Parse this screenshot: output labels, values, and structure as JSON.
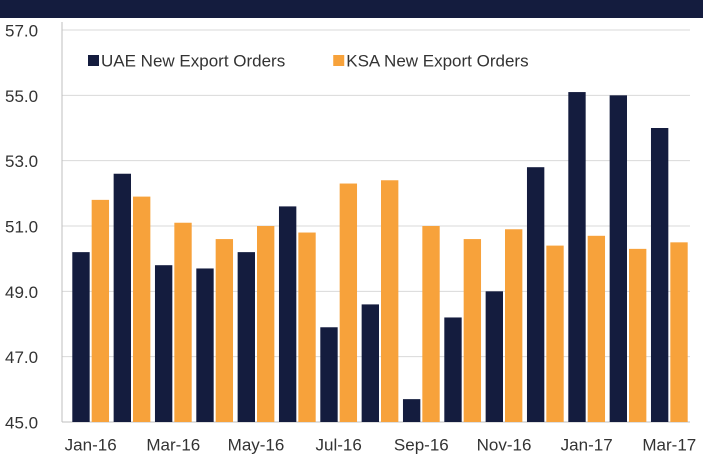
{
  "chart_data": {
    "type": "bar",
    "categories": [
      "Jan-16",
      null,
      "Mar-16",
      null,
      "May-16",
      null,
      "Jul-16",
      null,
      "Sep-16",
      null,
      "Nov-16",
      null,
      "Jan-17",
      null,
      "Mar-17"
    ],
    "series": [
      {
        "name": "UAE New Export Orders",
        "color": "#141c3e",
        "values": [
          50.2,
          52.6,
          49.8,
          49.7,
          50.2,
          51.6,
          47.9,
          48.6,
          45.7,
          48.2,
          49.0,
          52.8,
          55.1,
          55.0,
          54.0
        ]
      },
      {
        "name": "KSA New Export Orders",
        "color": "#f7a23b",
        "values": [
          51.8,
          51.9,
          51.1,
          50.6,
          51.0,
          50.8,
          52.3,
          52.4,
          51.0,
          50.6,
          50.9,
          50.4,
          50.7,
          50.3,
          50.5
        ]
      }
    ],
    "ylim": [
      45,
      57
    ],
    "yticks": [
      {
        "value": 45,
        "label": "45.0"
      },
      {
        "value": 47,
        "label": "47.0"
      },
      {
        "value": 49,
        "label": "49.0"
      },
      {
        "value": 51,
        "label": "51.0"
      },
      {
        "value": 53,
        "label": "53.0"
      },
      {
        "value": 55,
        "label": "55.0"
      },
      {
        "value": 57,
        "label": "57.0"
      }
    ],
    "grid": true,
    "legend": "upper left"
  }
}
